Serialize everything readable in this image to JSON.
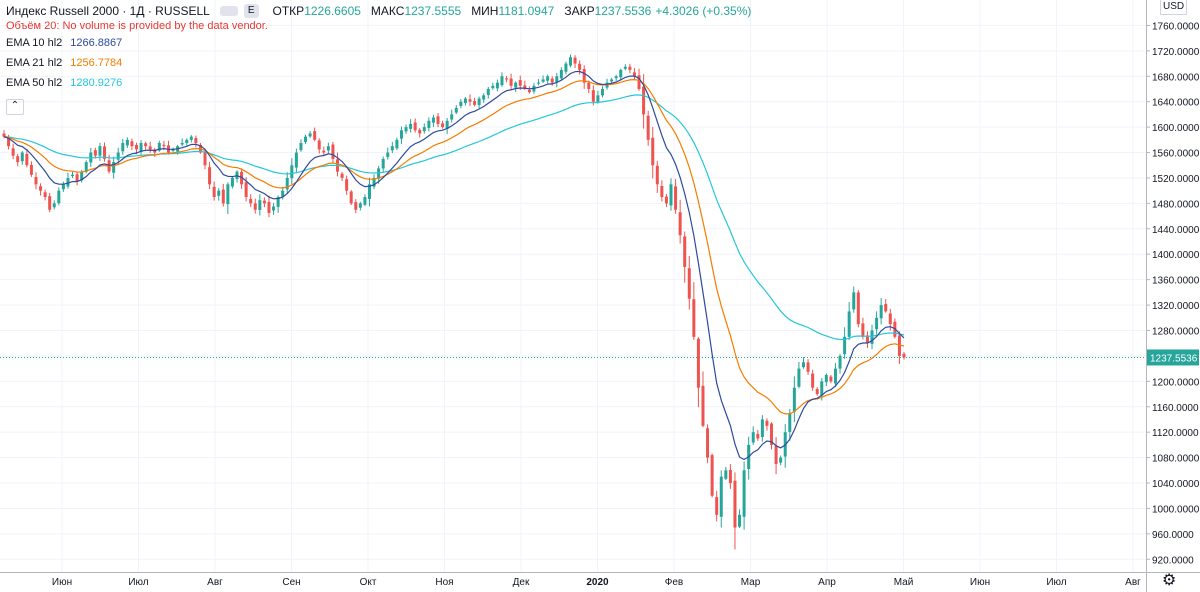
{
  "header": {
    "title": "Индекс Russell 2000 · 1Д · RUSSELL",
    "badge": "E",
    "open_label": "ОТКР",
    "open": "1226.6605",
    "high_label": "МАКС",
    "high": "1237.5555",
    "low_label": "МИН",
    "low": "1181.0947",
    "close_label": "ЗАКР",
    "close": "1237.5536",
    "change": "+4.3026 (+0.35%)",
    "volume_warning": "Объём 20: No volume is provided by the data vendor.",
    "collapse_icon": "chevron-up-icon"
  },
  "indicators": [
    {
      "name": "EMA 10 hl2",
      "value": "1266.8867",
      "color": "#2e4a9e"
    },
    {
      "name": "EMA 21 hl2",
      "value": "1256.7784",
      "color": "#f57c00"
    },
    {
      "name": "EMA 50 hl2",
      "value": "1280.9276",
      "color": "#26c6da"
    }
  ],
  "currency": "USD",
  "settings_icon": "gear-icon",
  "colors": {
    "up": "#26a69a",
    "down": "#ef5350",
    "grid": "#f0f3fa",
    "price_line": "#26a69a"
  },
  "chart_data": {
    "type": "candlestick",
    "y_range": [
      900,
      1800
    ],
    "y_ticks": [
      920,
      960,
      1000,
      1040,
      1080,
      1120,
      1160,
      1200,
      1240,
      1280,
      1320,
      1360,
      1400,
      1440,
      1480,
      1520,
      1560,
      1600,
      1640,
      1680,
      1720,
      1760
    ],
    "x_labels": [
      "Июн",
      "Июл",
      "Авг",
      "Сен",
      "Окт",
      "Ноя",
      "Дек",
      "2020",
      "Фев",
      "Мар",
      "Апр",
      "Май",
      "Июн",
      "Июл",
      "Авг"
    ],
    "last_price": 1237.5536,
    "last_price_label": "1237.5536",
    "close_series": [
      1585,
      1570,
      1555,
      1545,
      1560,
      1540,
      1525,
      1510,
      1500,
      1490,
      1470,
      1480,
      1500,
      1510,
      1520,
      1525,
      1515,
      1530,
      1545,
      1560,
      1555,
      1570,
      1550,
      1530,
      1545,
      1560,
      1575,
      1580,
      1570,
      1565,
      1575,
      1570,
      1565,
      1560,
      1575,
      1570,
      1560,
      1565,
      1570,
      1575,
      1580,
      1585,
      1575,
      1560,
      1540,
      1510,
      1490,
      1500,
      1480,
      1510,
      1520,
      1530,
      1510,
      1490,
      1480,
      1470,
      1485,
      1480,
      1465,
      1475,
      1490,
      1500,
      1520,
      1540,
      1560,
      1575,
      1585,
      1590,
      1580,
      1565,
      1560,
      1570,
      1550,
      1530,
      1520,
      1500,
      1480,
      1470,
      1480,
      1490,
      1510,
      1520,
      1535,
      1550,
      1560,
      1570,
      1580,
      1595,
      1600,
      1605,
      1595,
      1590,
      1600,
      1610,
      1615,
      1605,
      1600,
      1610,
      1620,
      1630,
      1640,
      1645,
      1640,
      1635,
      1645,
      1650,
      1660,
      1665,
      1670,
      1680,
      1675,
      1665,
      1670,
      1665,
      1660,
      1655,
      1665,
      1670,
      1675,
      1680,
      1670,
      1680,
      1690,
      1700,
      1710,
      1700,
      1690,
      1670,
      1660,
      1640,
      1650,
      1660,
      1670,
      1675,
      1680,
      1690,
      1695,
      1690,
      1680,
      1660,
      1620,
      1580,
      1540,
      1510,
      1490,
      1480,
      1510,
      1470,
      1430,
      1380,
      1330,
      1270,
      1190,
      1130,
      1080,
      1020,
      990,
      1050,
      1060,
      1040,
      970,
      990,
      1060,
      1100,
      1120,
      1110,
      1140,
      1130,
      1100,
      1070,
      1080,
      1120,
      1150,
      1190,
      1220,
      1230,
      1215,
      1190,
      1180,
      1200,
      1210,
      1200,
      1220,
      1240,
      1270,
      1310,
      1340,
      1290,
      1270,
      1260,
      1280,
      1300,
      1320,
      1310,
      1290,
      1270,
      1240,
      1237.55
    ],
    "ema10_final": 1266.8867,
    "ema21_final": 1256.7784,
    "ema50_final": 1280.9276
  }
}
